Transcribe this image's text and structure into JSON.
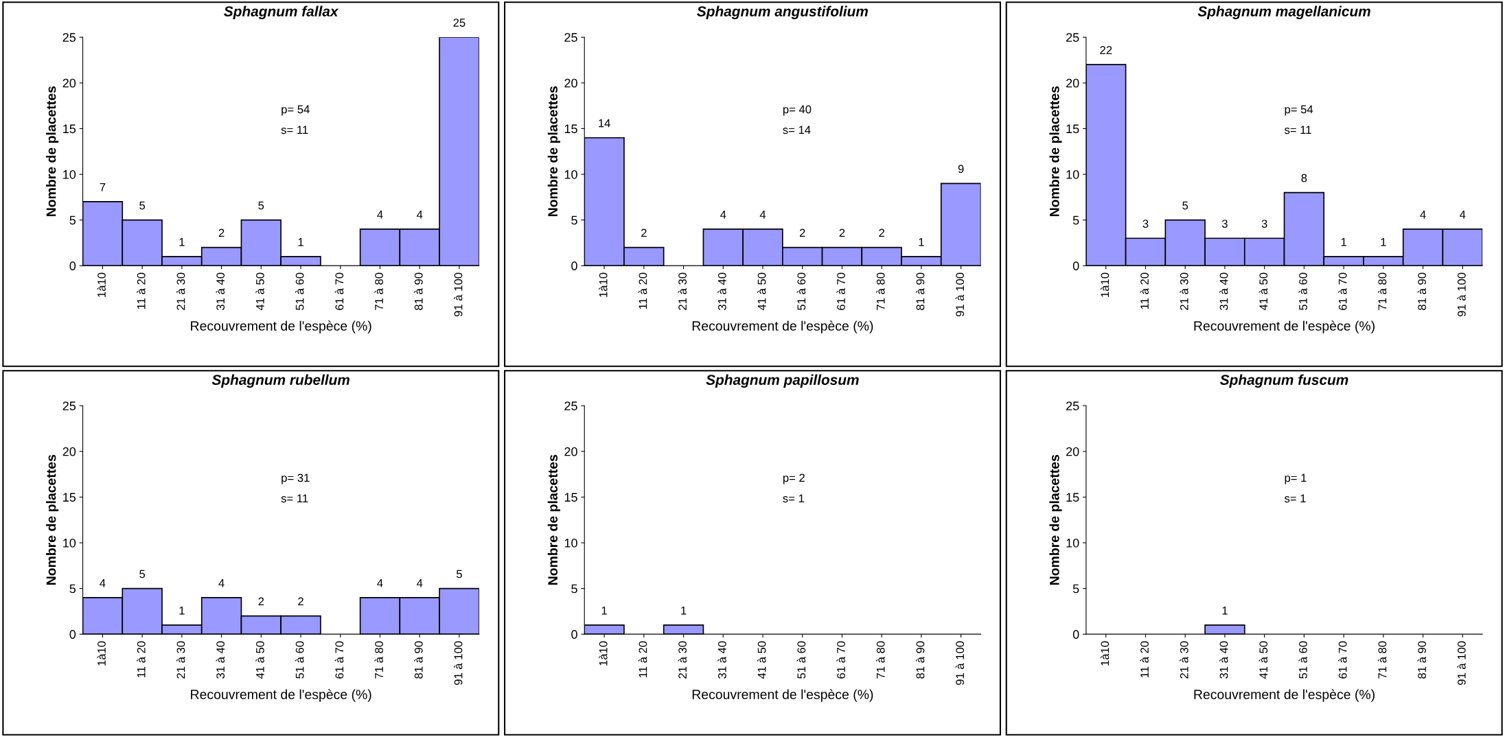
{
  "chart_data": [
    {
      "type": "bar",
      "title": "Sphagnum fallax",
      "xlabel": "Recouvrement de l'espèce (%)",
      "ylabel": "Nombre de placettes",
      "categories": [
        "1à10",
        "11 à 20",
        "21 à 30",
        "31 à 40",
        "41 à 50",
        "51 à 60",
        "61 à 70",
        "71 à 80",
        "81 à 90",
        "91 à 100"
      ],
      "values": [
        7,
        5,
        1,
        2,
        5,
        1,
        0,
        4,
        4,
        25
      ],
      "value_labels": [
        "7",
        "5",
        "1",
        "2",
        "5",
        "1",
        null,
        "4",
        "4",
        "25"
      ],
      "color": "#9999ff",
      "ylim": [
        0,
        25
      ],
      "yticks": [
        0,
        5,
        10,
        15,
        20,
        25
      ],
      "grid": false,
      "legend": false,
      "annotations": [
        "p= 54",
        "s= 11"
      ]
    },
    {
      "type": "bar",
      "title": "Sphagnum angustifolium",
      "xlabel": "Recouvrement de l'espèce (%)",
      "ylabel": "Nombre de placettes",
      "categories": [
        "1à10",
        "11 à 20",
        "21 à 30",
        "31 à 40",
        "41 à 50",
        "51 à 60",
        "61 à 70",
        "71 à 80",
        "81 à 90",
        "91 à 100"
      ],
      "values": [
        14,
        2,
        0,
        4,
        4,
        2,
        2,
        2,
        1,
        9
      ],
      "value_labels": [
        "14",
        "2",
        null,
        "4",
        "4",
        "2",
        "2",
        "2",
        "1",
        "9"
      ],
      "color": "#9999ff",
      "ylim": [
        0,
        25
      ],
      "yticks": [
        0,
        5,
        10,
        15,
        20,
        25
      ],
      "grid": false,
      "legend": false,
      "annotations": [
        "p= 40",
        "s= 14"
      ]
    },
    {
      "type": "bar",
      "title": "Sphagnum magellanicum",
      "xlabel": "Recouvrement de l'espèce (%)",
      "ylabel": "Nombre de placettes",
      "categories": [
        "1à10",
        "11 à 20",
        "21 à 30",
        "31 à 40",
        "41 à 50",
        "51 à 60",
        "61 à 70",
        "71 à 80",
        "81 à 90",
        "91 à 100"
      ],
      "values": [
        22,
        3,
        5,
        3,
        3,
        8,
        1,
        1,
        4,
        4
      ],
      "value_labels": [
        "22",
        "3",
        "5",
        "3",
        "3",
        "8",
        "1",
        "1",
        "4",
        "4"
      ],
      "color": "#9999ff",
      "ylim": [
        0,
        25
      ],
      "yticks": [
        0,
        5,
        10,
        15,
        20,
        25
      ],
      "grid": false,
      "legend": false,
      "annotations": [
        "p= 54",
        "s= 11"
      ]
    },
    {
      "type": "bar",
      "title": "Sphagnum rubellum",
      "xlabel": "Recouvrement de l'espèce (%)",
      "ylabel": "Nombre de placettes",
      "categories": [
        "1à10",
        "11 à 20",
        "21 à 30",
        "31 à 40",
        "41 à 50",
        "51 à 60",
        "61 à 70",
        "71 à 80",
        "81 à 90",
        "91 à 100"
      ],
      "values": [
        4,
        5,
        1,
        4,
        2,
        2,
        0,
        4,
        4,
        5
      ],
      "value_labels": [
        "4",
        "5",
        "1",
        "4",
        "2",
        "2",
        null,
        "4",
        "4",
        "5"
      ],
      "color": "#9999ff",
      "ylim": [
        0,
        25
      ],
      "yticks": [
        0,
        5,
        10,
        15,
        20,
        25
      ],
      "grid": false,
      "legend": false,
      "annotations": [
        "p= 31",
        "s= 11"
      ]
    },
    {
      "type": "bar",
      "title": "Sphagnum papillosum",
      "xlabel": "Recouvrement de l'espèce (%)",
      "ylabel": "Nombre de placettes",
      "categories": [
        "1à10",
        "11 à 20",
        "21 à 30",
        "31 à 40",
        "41 à 50",
        "51 à 60",
        "61 à 70",
        "71 à 80",
        "81 à 90",
        "91 à 100"
      ],
      "values": [
        1,
        0,
        1,
        0,
        0,
        0,
        0,
        0,
        0,
        0
      ],
      "value_labels": [
        "1",
        null,
        "1",
        null,
        null,
        null,
        null,
        null,
        null,
        null
      ],
      "color": "#9999ff",
      "ylim": [
        0,
        25
      ],
      "yticks": [
        0,
        5,
        10,
        15,
        20,
        25
      ],
      "grid": false,
      "legend": false,
      "annotations": [
        "p= 2",
        "s= 1"
      ]
    },
    {
      "type": "bar",
      "title": "Sphagnum fuscum",
      "xlabel": "Recouvrement de l'espèce (%)",
      "ylabel": "Nombre de placettes",
      "categories": [
        "1à10",
        "11 à 20",
        "21 à 30",
        "31 à 40",
        "41 à 50",
        "51 à 60",
        "61 à 70",
        "71 à 80",
        "81 à 90",
        "91 à 100"
      ],
      "values": [
        0,
        0,
        0,
        1,
        0,
        0,
        0,
        0,
        0,
        0
      ],
      "value_labels": [
        null,
        null,
        null,
        "1",
        null,
        null,
        null,
        null,
        null,
        null
      ],
      "color": "#9999ff",
      "ylim": [
        0,
        25
      ],
      "yticks": [
        0,
        5,
        10,
        15,
        20,
        25
      ],
      "grid": false,
      "legend": false,
      "annotations": [
        "p= 1",
        "s= 1"
      ]
    }
  ]
}
